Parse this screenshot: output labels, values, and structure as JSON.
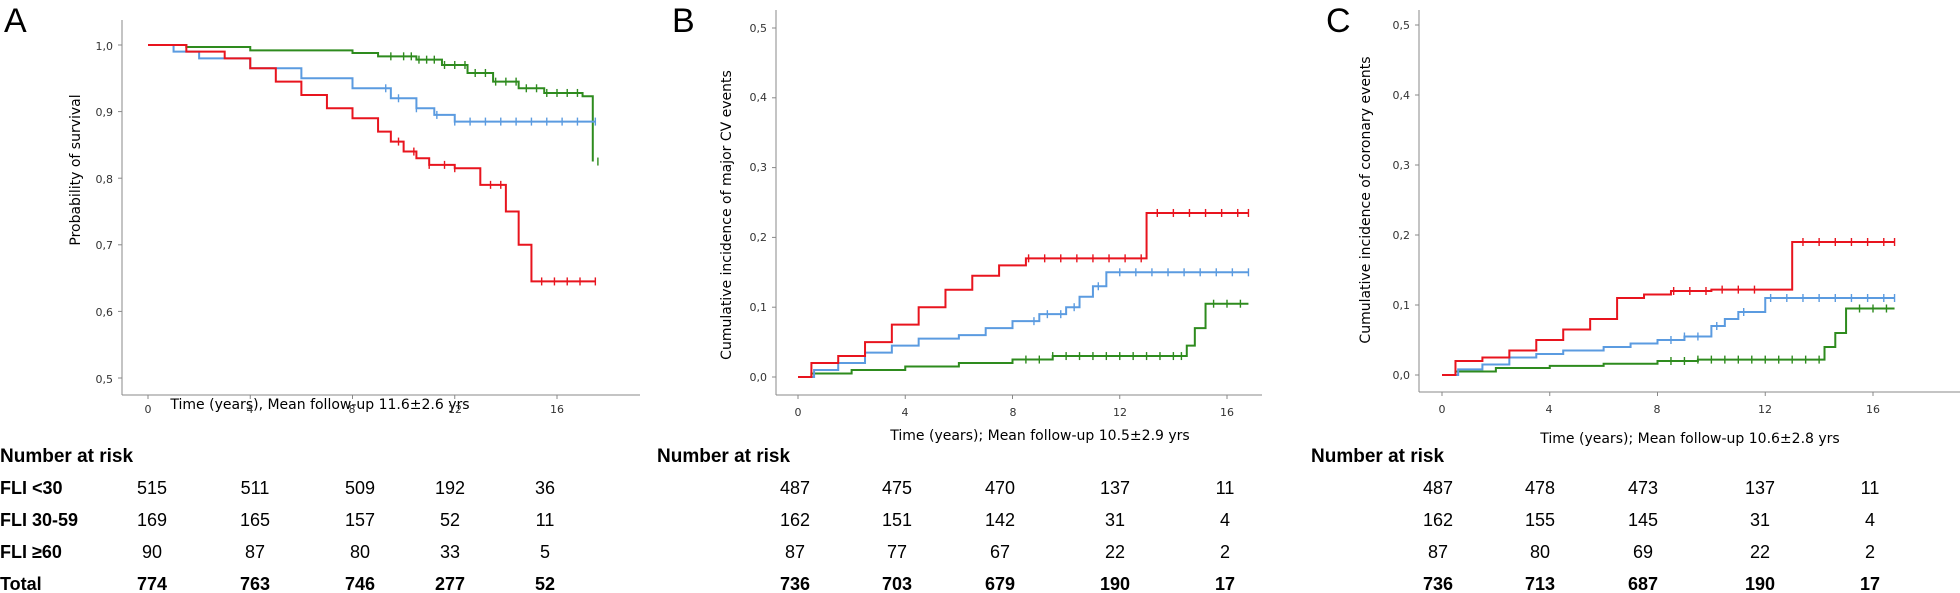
{
  "colors": {
    "fli_lt30": "#2e8b1e",
    "fli_30_59": "#5b9be0",
    "fli_ge60": "#e8141e",
    "axis": "#888888"
  },
  "chart_data": [
    {
      "panel": "A",
      "type": "line",
      "ylabel": "Probability of survival",
      "xlabel": "Time (years), Mean follow-up 11.6±2.6 yrs",
      "xlim": [
        -1,
        18.5
      ],
      "ylim": [
        0.48,
        1.02
      ],
      "xticks": [
        0,
        4,
        8,
        12,
        16
      ],
      "xtick_labels": [
        "0",
        "4",
        "8",
        "12",
        "16"
      ],
      "yticks": [
        0.5,
        0.6,
        0.7,
        0.8,
        0.9,
        1.0
      ],
      "ytick_labels": [
        "0,5",
        "0,6",
        "0,7",
        "0,8",
        "0,9",
        "1,0"
      ],
      "series": [
        {
          "name": "FLI <30",
          "color": "#2e8b1e",
          "x": [
            0,
            1.5,
            4,
            8,
            9,
            10.5,
            11.5,
            12.5,
            13.5,
            14.5,
            15.5,
            17.0,
            17.4
          ],
          "y": [
            1.0,
            0.997,
            0.992,
            0.988,
            0.983,
            0.978,
            0.97,
            0.958,
            0.945,
            0.935,
            0.928,
            0.923,
            0.825
          ],
          "censor_x": [
            9.5,
            10,
            10.3,
            10.6,
            10.9,
            11.2,
            11.6,
            12.0,
            12.4,
            12.8,
            13.2,
            13.6,
            14.0,
            14.4,
            14.8,
            15.2,
            15.6,
            16.0,
            16.4,
            16.8,
            17.6
          ]
        },
        {
          "name": "FLI 30-59",
          "color": "#5b9be0",
          "x": [
            0,
            1,
            2,
            4,
            6,
            8,
            9.5,
            10.5,
            11.2,
            12,
            17.5
          ],
          "y": [
            1.0,
            0.99,
            0.98,
            0.965,
            0.95,
            0.935,
            0.92,
            0.905,
            0.895,
            0.885,
            0.885
          ],
          "censor_x": [
            9.3,
            9.8,
            10.5,
            11.3,
            12.0,
            12.6,
            13.2,
            13.8,
            14.4,
            15.0,
            15.6,
            16.2,
            16.8,
            17.5
          ]
        },
        {
          "name": "FLI ≥60",
          "color": "#e8141e",
          "x": [
            0,
            1.5,
            3,
            4,
            5,
            6,
            7,
            8,
            9,
            9.5,
            10,
            10.5,
            11,
            12,
            13,
            14,
            14.5,
            15.0,
            17.5
          ],
          "y": [
            1.0,
            0.99,
            0.98,
            0.965,
            0.945,
            0.925,
            0.905,
            0.89,
            0.87,
            0.855,
            0.84,
            0.83,
            0.82,
            0.815,
            0.79,
            0.75,
            0.7,
            0.645,
            0.645
          ],
          "censor_x": [
            9.8,
            10.4,
            11.0,
            11.6,
            12.0,
            13.4,
            13.8,
            15.4,
            15.9,
            16.4,
            16.9,
            17.5
          ]
        }
      ]
    },
    {
      "panel": "B",
      "type": "line",
      "ylabel": "Cumulative incidence of major CV events",
      "xlabel": "Time (years); Mean follow-up 10.5±2.9 yrs",
      "xlim": [
        -0.5,
        18
      ],
      "ylim": [
        -0.015,
        0.52
      ],
      "xticks": [
        0,
        4,
        8,
        12,
        16
      ],
      "xtick_labels": [
        "0",
        "4",
        "8",
        "12",
        "16"
      ],
      "yticks": [
        0.0,
        0.1,
        0.2,
        0.3,
        0.4,
        0.5
      ],
      "ytick_labels": [
        "0,0",
        "0,1",
        "0,2",
        "0,3",
        "0,4",
        "0,5"
      ],
      "series": [
        {
          "name": "FLI <30",
          "color": "#2e8b1e",
          "x": [
            0,
            0.5,
            2,
            4,
            6,
            8,
            9.5,
            11,
            13,
            14.5,
            14.8,
            15.2,
            16.8
          ],
          "y": [
            0.0,
            0.005,
            0.01,
            0.015,
            0.02,
            0.025,
            0.03,
            0.03,
            0.03,
            0.045,
            0.07,
            0.105,
            0.105
          ],
          "censor_x": [
            8.5,
            9,
            9.5,
            10,
            10.5,
            11,
            11.5,
            12,
            12.5,
            13,
            13.5,
            14,
            14.3,
            15.5,
            16,
            16.5
          ]
        },
        {
          "name": "FLI 30-59",
          "color": "#5b9be0",
          "x": [
            0,
            0.6,
            1.5,
            2.5,
            3.5,
            4.5,
            6,
            7,
            8,
            9,
            10,
            10.5,
            11,
            11.5,
            16.8
          ],
          "y": [
            0.0,
            0.01,
            0.02,
            0.035,
            0.045,
            0.055,
            0.06,
            0.07,
            0.08,
            0.09,
            0.1,
            0.115,
            0.13,
            0.15,
            0.15
          ],
          "censor_x": [
            8.8,
            9.3,
            9.8,
            10.3,
            11.2,
            12,
            12.6,
            13.2,
            13.8,
            14.4,
            15,
            15.6,
            16.2,
            16.8
          ]
        },
        {
          "name": "FLI ≥60",
          "color": "#e8141e",
          "x": [
            0,
            0.5,
            1.5,
            2.5,
            3.5,
            4.5,
            5.5,
            6.5,
            7.5,
            8.5,
            10,
            13,
            16.8
          ],
          "y": [
            0.0,
            0.02,
            0.03,
            0.05,
            0.075,
            0.1,
            0.125,
            0.145,
            0.16,
            0.17,
            0.17,
            0.235,
            0.235
          ],
          "censor_x": [
            8.6,
            9.2,
            9.8,
            10.4,
            11,
            11.6,
            12.2,
            12.8,
            13.4,
            14,
            14.6,
            15.2,
            15.8,
            16.4,
            16.8
          ]
        }
      ]
    },
    {
      "panel": "C",
      "type": "line",
      "ylabel": "Cumulative incidence of coronary events",
      "xlabel": "Time (years); Mean follow-up 10.6±2.8 yrs",
      "xlim": [
        -0.5,
        18
      ],
      "ylim": [
        -0.015,
        0.52
      ],
      "xticks": [
        0,
        4,
        8,
        12,
        16
      ],
      "xtick_labels": [
        "0",
        "4",
        "8",
        "12",
        "16"
      ],
      "yticks": [
        0.0,
        0.1,
        0.2,
        0.3,
        0.4,
        0.5
      ],
      "ytick_labels": [
        "0,0",
        "0,1",
        "0,2",
        "0,3",
        "0,4",
        "0,5"
      ],
      "series": [
        {
          "name": "FLI <30",
          "color": "#2e8b1e",
          "x": [
            0,
            0.5,
            2,
            4,
            6,
            8,
            9.5,
            11,
            13,
            14.2,
            14.6,
            15.0,
            16.8
          ],
          "y": [
            0.0,
            0.005,
            0.01,
            0.013,
            0.016,
            0.02,
            0.022,
            0.022,
            0.022,
            0.04,
            0.06,
            0.095,
            0.095
          ],
          "censor_x": [
            8.5,
            9,
            9.5,
            10,
            10.5,
            11,
            11.5,
            12,
            12.5,
            13,
            13.5,
            14,
            15.5,
            16,
            16.5
          ]
        },
        {
          "name": "FLI 30-59",
          "color": "#5b9be0",
          "x": [
            0,
            0.6,
            1.5,
            2.5,
            3.5,
            4.5,
            6,
            7,
            8,
            9,
            10,
            10.5,
            11,
            12,
            16.8
          ],
          "y": [
            0.0,
            0.008,
            0.015,
            0.025,
            0.03,
            0.035,
            0.04,
            0.045,
            0.05,
            0.055,
            0.07,
            0.08,
            0.09,
            0.11,
            0.11
          ],
          "censor_x": [
            8.5,
            9,
            9.5,
            10.2,
            11.2,
            12.2,
            12.8,
            13.4,
            14,
            14.6,
            15.2,
            15.8,
            16.4,
            16.8
          ]
        },
        {
          "name": "FLI ≥60",
          "color": "#e8141e",
          "x": [
            0,
            0.5,
            1.5,
            2.5,
            3.5,
            4.5,
            5.5,
            6.5,
            7.5,
            8.5,
            10,
            13,
            16.8
          ],
          "y": [
            0.0,
            0.02,
            0.025,
            0.035,
            0.05,
            0.065,
            0.08,
            0.11,
            0.115,
            0.12,
            0.122,
            0.19,
            0.19
          ],
          "censor_x": [
            8.6,
            9.2,
            9.8,
            10.4,
            11,
            11.6,
            13.4,
            14,
            14.6,
            15.2,
            15.8,
            16.4,
            16.8
          ]
        }
      ]
    }
  ],
  "panels": {
    "A": {
      "letter": "A",
      "ytick_labels": [
        "0,5",
        "0,6",
        "0,7",
        "0,8",
        "0,9",
        "1,0"
      ],
      "xtick_labels": [
        "0",
        "4",
        "8",
        "12",
        "16"
      ]
    },
    "B": {
      "letter": "B",
      "ytick_labels": [
        "0,0",
        "0,1",
        "0,2",
        "0,3",
        "0,4",
        "0,5"
      ],
      "xtick_labels": [
        "0",
        "4",
        "8",
        "12",
        "16"
      ]
    },
    "C": {
      "letter": "C",
      "ytick_labels": [
        "0,0",
        "0,1",
        "0,2",
        "0,3",
        "0,4",
        "0,5"
      ],
      "xtick_labels": [
        "0",
        "4",
        "8",
        "12",
        "16"
      ]
    }
  },
  "risk_tables": {
    "title": "Number at risk",
    "row_labels": [
      "FLI <30",
      "FLI 30-59",
      "FLI ≥60",
      "Total"
    ],
    "A": [
      [
        "515",
        "511",
        "509",
        "192",
        "36"
      ],
      [
        "169",
        "165",
        "157",
        "52",
        "11"
      ],
      [
        "90",
        "87",
        "80",
        "33",
        "5"
      ],
      [
        "774",
        "763",
        "746",
        "277",
        "52"
      ]
    ],
    "B": [
      [
        "487",
        "475",
        "470",
        "137",
        "11"
      ],
      [
        "162",
        "151",
        "142",
        "31",
        "4"
      ],
      [
        "87",
        "77",
        "67",
        "22",
        "2"
      ],
      [
        "736",
        "703",
        "679",
        "190",
        "17"
      ]
    ],
    "C": [
      [
        "487",
        "478",
        "473",
        "137",
        "11"
      ],
      [
        "162",
        "155",
        "145",
        "31",
        "4"
      ],
      [
        "87",
        "80",
        "69",
        "22",
        "2"
      ],
      [
        "736",
        "713",
        "687",
        "190",
        "17"
      ]
    ]
  }
}
